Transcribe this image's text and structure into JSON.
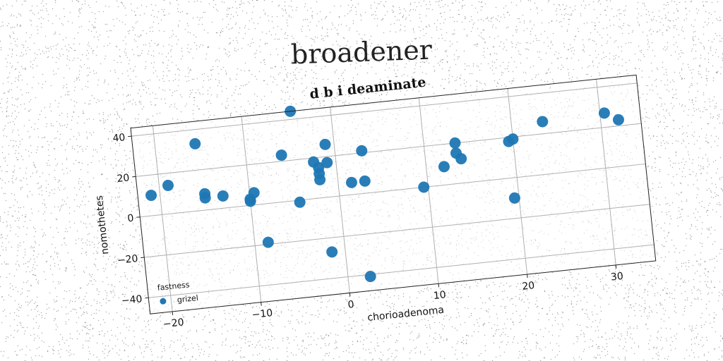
{
  "figure": {
    "suptitle": "broadener"
  },
  "chart_data": {
    "type": "scatter",
    "title": "d b i deaminate",
    "xlabel": "chorioadenoma",
    "ylabel": "nomothetes",
    "xlim": [
      -22.5,
      34.5
    ],
    "ylim": [
      -48,
      44
    ],
    "xticks": [
      -20,
      -10,
      0,
      10,
      20,
      30
    ],
    "yticks": [
      -40,
      -20,
      0,
      20,
      40
    ],
    "grid": true,
    "legend": {
      "title": "fastness",
      "position": "lower-left"
    },
    "series": [
      {
        "name": "grizel",
        "color": "#1f77b4",
        "points": [
          [
            -21,
            10
          ],
          [
            -19,
            14
          ],
          [
            -15.5,
            33
          ],
          [
            -15,
            6
          ],
          [
            -15,
            8
          ],
          [
            -13,
            6
          ],
          [
            -10,
            3
          ],
          [
            -10,
            2
          ],
          [
            -9.5,
            6
          ],
          [
            -8.5,
            -19
          ],
          [
            -6,
            23
          ],
          [
            -4.5,
            44
          ],
          [
            -4.5,
            -1
          ],
          [
            -2.5,
            18
          ],
          [
            -2,
            15
          ],
          [
            -2,
            12
          ],
          [
            -2,
            9
          ],
          [
            -1.5,
            -27
          ],
          [
            -1,
            26
          ],
          [
            -1,
            17
          ],
          [
            1.5,
            6
          ],
          [
            2.5,
            -41
          ],
          [
            3,
            21
          ],
          [
            3,
            6
          ],
          [
            9.5,
            0
          ],
          [
            12,
            9
          ],
          [
            13.5,
            20
          ],
          [
            13.5,
            15
          ],
          [
            14,
            12
          ],
          [
            19.5,
            18
          ],
          [
            20,
            19
          ],
          [
            19.5,
            -10
          ],
          [
            23.5,
            26
          ],
          [
            30.5,
            27
          ],
          [
            32,
            23
          ]
        ]
      }
    ]
  }
}
